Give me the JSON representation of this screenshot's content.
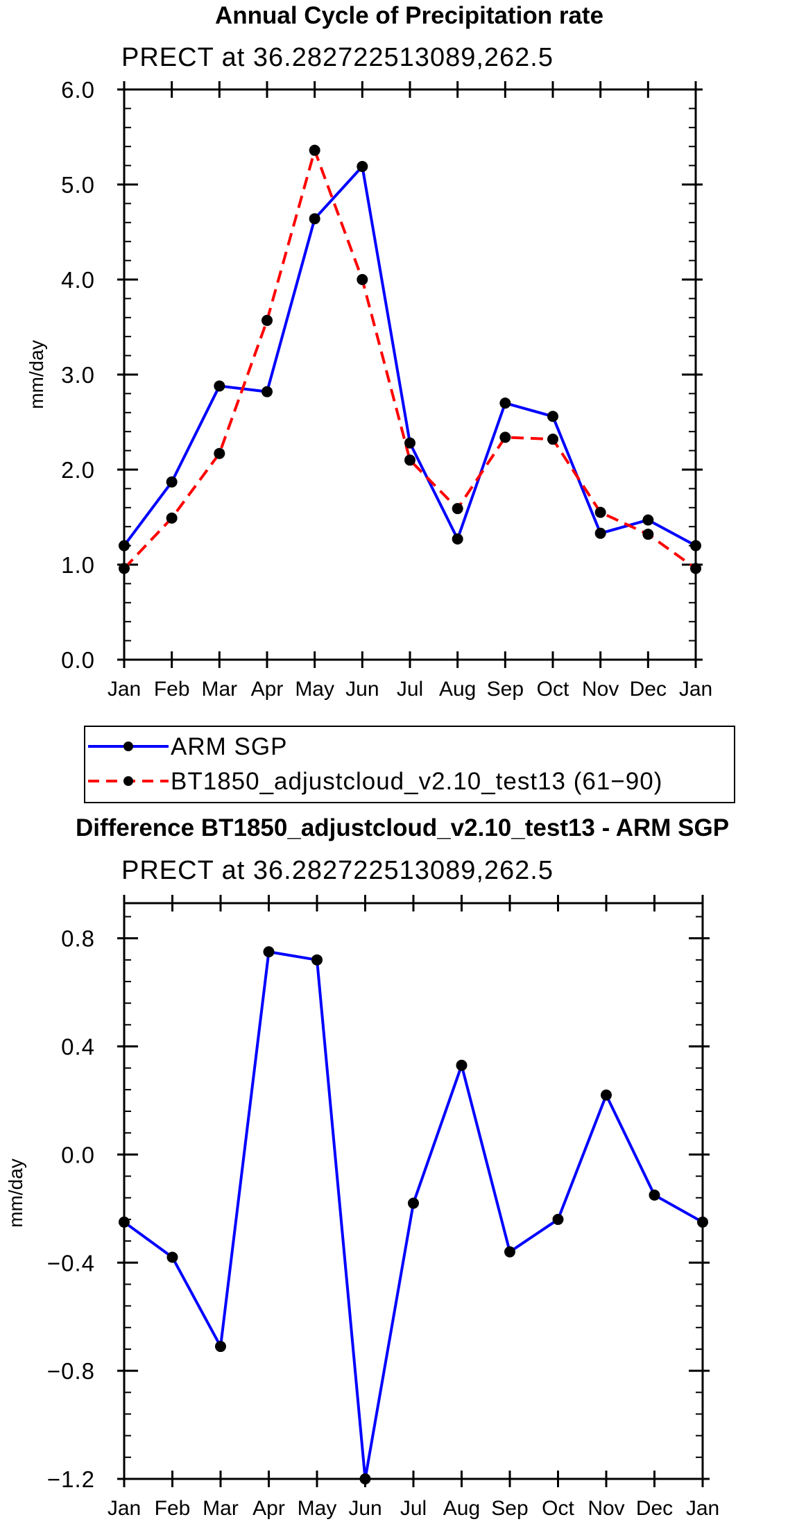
{
  "chart_data": [
    {
      "type": "line",
      "title": "Annual Cycle of Precipitation rate",
      "subtitle": "PRECT at 36.282722513089,262.5",
      "xlabel": "",
      "ylabel": "mm/day",
      "categories": [
        "Jan",
        "Feb",
        "Mar",
        "Apr",
        "May",
        "Jun",
        "Jul",
        "Aug",
        "Sep",
        "Oct",
        "Nov",
        "Dec",
        "Jan"
      ],
      "ylim": [
        0.0,
        6.0
      ],
      "yticks": [
        0.0,
        1.0,
        2.0,
        3.0,
        4.0,
        5.0,
        6.0
      ],
      "ytick_labels": [
        "0.0",
        "1.0",
        "2.0",
        "3.0",
        "4.0",
        "5.0",
        "6.0"
      ],
      "minor_ytick_step": 0.2,
      "series": [
        {
          "name": "ARM SGP",
          "color": "#0000ff",
          "dash": "solid",
          "values": [
            1.2,
            1.87,
            2.88,
            2.82,
            4.64,
            5.19,
            2.28,
            1.27,
            2.7,
            2.56,
            1.33,
            1.47,
            1.2
          ]
        },
        {
          "name": "BT1850_adjustcloud_v2.10_test13 (61−90)",
          "color": "#ff0000",
          "dash": "dashed",
          "values": [
            0.96,
            1.49,
            2.17,
            3.57,
            5.36,
            4.0,
            2.1,
            1.59,
            2.34,
            2.32,
            1.55,
            1.32,
            0.96
          ]
        }
      ]
    },
    {
      "type": "line",
      "title": "Difference BT1850_adjustcloud_v2.10_test13 - ARM SGP",
      "subtitle": "PRECT at 36.282722513089,262.5",
      "xlabel": "",
      "ylabel": "mm/day",
      "categories": [
        "Jan",
        "Feb",
        "Mar",
        "Apr",
        "May",
        "Jun",
        "Jul",
        "Aug",
        "Sep",
        "Oct",
        "Nov",
        "Dec",
        "Jan"
      ],
      "ylim": [
        -1.2,
        0.93
      ],
      "yticks": [
        -1.2,
        -0.8,
        -0.4,
        0.0,
        0.4,
        0.8
      ],
      "ytick_labels": [
        "−1.2",
        "−0.8",
        "−0.4",
        "0.0",
        "0.4",
        "0.8"
      ],
      "minor_ytick_step": 0.08,
      "series": [
        {
          "name": "Difference",
          "color": "#0000ff",
          "dash": "solid",
          "values": [
            -0.25,
            -0.38,
            -0.71,
            0.75,
            0.72,
            -1.2,
            -0.18,
            0.33,
            -0.36,
            -0.24,
            0.22,
            -0.15,
            -0.25
          ]
        }
      ]
    }
  ],
  "legend": {
    "entries": [
      {
        "label": "ARM SGP",
        "color": "#0000ff",
        "dash": "solid"
      },
      {
        "label": "BT1850_adjustcloud_v2.10_test13 (61−90)",
        "color": "#ff0000",
        "dash": "dashed"
      }
    ]
  }
}
